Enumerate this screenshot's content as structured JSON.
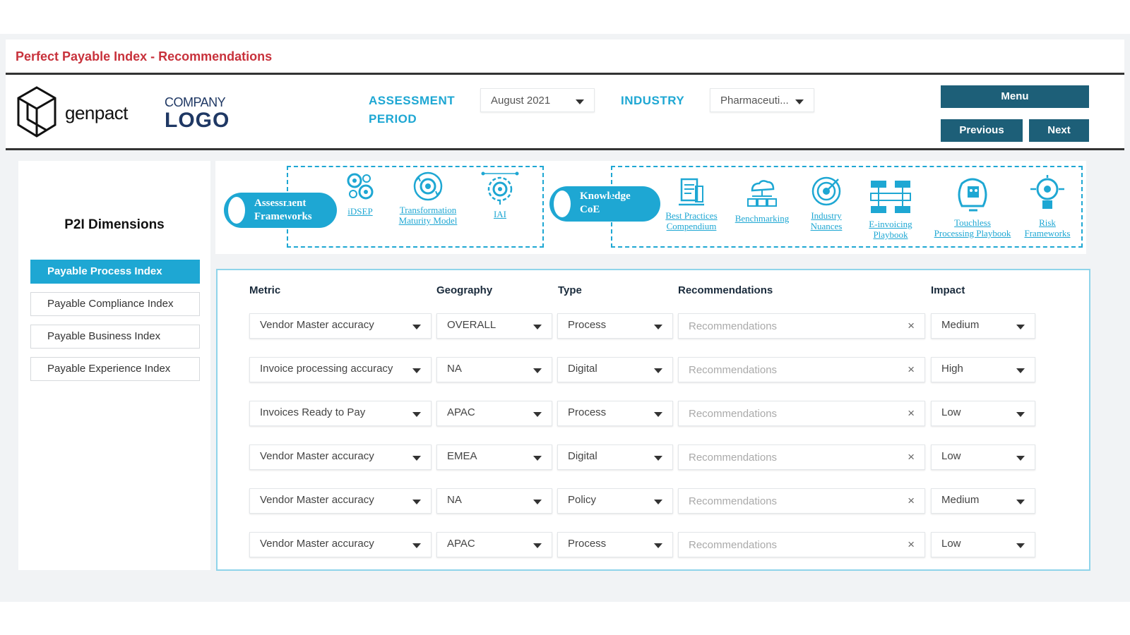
{
  "app": {
    "title": "Perfect Payable Index - Recommendations"
  },
  "branding": {
    "genpact": "genpact",
    "company_top": "COMPANY",
    "company_bottom": "LOGO"
  },
  "header": {
    "assessment_label_1": "ASSESSMENT",
    "assessment_label_2": "PERIOD",
    "assessment_value": "August 2021",
    "industry_label": "INDUSTRY",
    "industry_value": "Pharmaceuti...",
    "menu_label": "Menu",
    "previous_label": "Previous",
    "next_label": "Next"
  },
  "sidebar": {
    "title": "P2I Dimensions",
    "items": [
      {
        "label": "Payable Process Index",
        "active": true
      },
      {
        "label": "Payable Compliance Index",
        "active": false
      },
      {
        "label": "Payable Business Index",
        "active": false
      },
      {
        "label": "Payable Experience Index",
        "active": false
      }
    ]
  },
  "frameworks": {
    "assessment_pill_1": "Assessment",
    "assessment_pill_2": "Frameworks",
    "assessment_tools": [
      {
        "name": "iDSEP",
        "icon": "gears-icon"
      },
      {
        "name": "Transformation Maturity Model",
        "line1": "Transformation",
        "line2": "Maturity Model",
        "icon": "cycle-gear-icon"
      },
      {
        "name": "IAI",
        "icon": "ai-gear-icon"
      }
    ],
    "knowledge_pill_1": "Knowledge",
    "knowledge_pill_2": "CoE",
    "knowledge_tools": [
      {
        "line1": "Best Practices",
        "line2": "Compendium",
        "icon": "document-icon"
      },
      {
        "line1": "Benchmarking",
        "line2": "",
        "icon": "network-cloud-icon"
      },
      {
        "line1": "Industry",
        "line2": "Nuances",
        "icon": "target-icon"
      },
      {
        "line1": "E-invoicing",
        "line2": "Playbook",
        "icon": "flowchart-icon"
      },
      {
        "line1": "Touchless",
        "line2": "Processing Playbook",
        "icon": "robot-head-icon"
      },
      {
        "line1": "Risk",
        "line2": "Frameworks",
        "icon": "bulb-gear-icon"
      }
    ]
  },
  "table": {
    "headers": {
      "metric": "Metric",
      "geography": "Geography",
      "type": "Type",
      "recommendations": "Recommendations",
      "impact": "Impact"
    },
    "rec_placeholder": "Recommendations",
    "rows": [
      {
        "metric": "Vendor Master accuracy",
        "geography": "OVERALL",
        "type": "Process",
        "impact": "Medium"
      },
      {
        "metric": "Invoice processing accuracy",
        "geography": "NA",
        "type": "Digital",
        "impact": "High"
      },
      {
        "metric": "Invoices Ready to Pay",
        "geography": "APAC",
        "type": "Process",
        "impact": "Low"
      },
      {
        "metric": "Vendor Master accuracy",
        "geography": "EMEA",
        "type": "Digital",
        "impact": "Low"
      },
      {
        "metric": "Vendor Master accuracy",
        "geography": "NA",
        "type": "Policy",
        "impact": "Medium"
      },
      {
        "metric": "Vendor Master accuracy",
        "geography": "APAC",
        "type": "Process",
        "impact": "Low"
      }
    ]
  },
  "colors": {
    "accent": "#1ea7d3",
    "nav_button": "#1d5f78",
    "title_red": "#c8323c",
    "logo_navy": "#1f3864"
  }
}
